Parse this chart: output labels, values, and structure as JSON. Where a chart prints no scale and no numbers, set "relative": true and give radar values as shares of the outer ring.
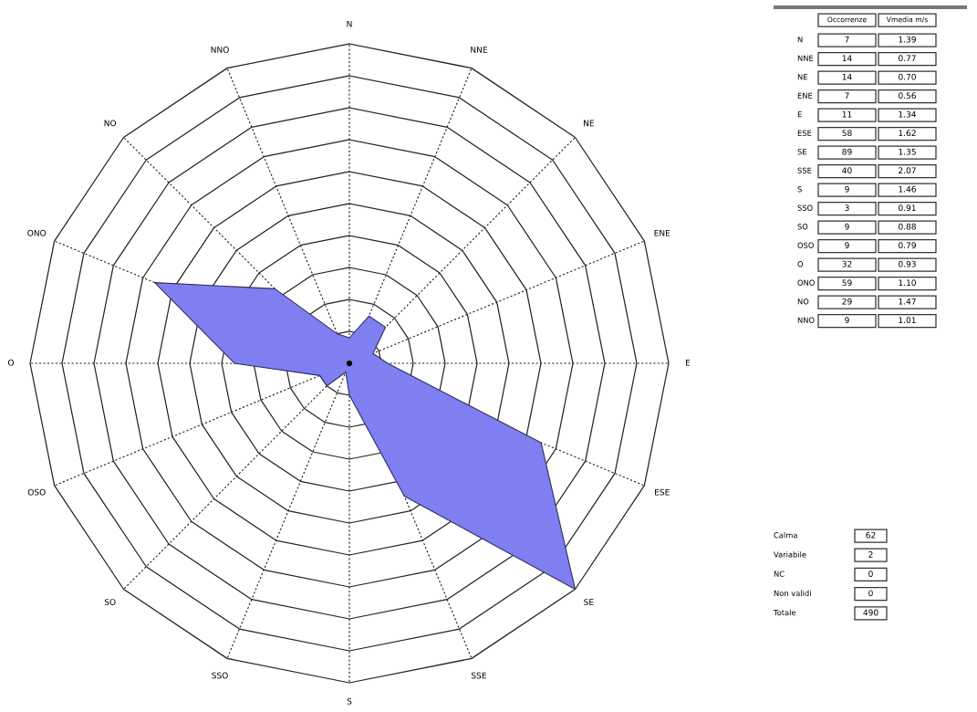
{
  "chart_data": [
    {
      "type": "radar",
      "categories": [
        "N",
        "NNE",
        "NE",
        "ENE",
        "E",
        "ESE",
        "SE",
        "SSE",
        "S",
        "SSO",
        "SO",
        "OSO",
        "O",
        "ONO",
        "NO",
        "NNO"
      ],
      "series": [
        {
          "color": "#7f7ff2",
          "values": [
            0.08,
            0.16,
            0.16,
            0.08,
            0.12,
            0.65,
            1,
            0.45,
            0.1,
            0.03,
            0.1,
            0.1,
            0.36,
            0.66,
            0.33,
            0.1
          ]
        }
      ],
      "relative": true,
      "grid": true
    },
    {
      "type": "other",
      "categories": [
        "N",
        "NNE",
        "NE",
        "ENE",
        "E",
        "ESE",
        "SE",
        "SSE",
        "S",
        "SSO",
        "SO",
        "OSO",
        "O",
        "ONO",
        "NO",
        "NNO"
      ],
      "series": [
        {
          "name": "Occorrenze",
          "values": [
            7,
            14,
            14,
            7,
            11,
            58,
            89,
            40,
            9,
            3,
            9,
            9,
            32,
            59,
            29,
            9
          ]
        },
        {
          "name": "Vmedia m/s",
          "value_labels": [
            "1.39",
            "0.77",
            "0.70",
            "0.56",
            "1.34",
            "1.62",
            "1.35",
            "2.07",
            "1.46",
            "0.91",
            "0.88",
            "0.79",
            "0.93",
            "1.10",
            "1.47",
            "1.01"
          ],
          "values": [
            1.39,
            0.77,
            0.7,
            0.56,
            1.34,
            1.62,
            1.35,
            2.07,
            1.46,
            0.91,
            0.88,
            0.79,
            0.93,
            1.1,
            1.47,
            1.01
          ]
        }
      ],
      "data_labels": true
    },
    {
      "type": "other",
      "categories": [
        "Calma",
        "Variabile",
        "NC",
        "Non validi",
        "Totale"
      ],
      "values": [
        62,
        2,
        0,
        0,
        490
      ],
      "data_labels": true
    }
  ]
}
